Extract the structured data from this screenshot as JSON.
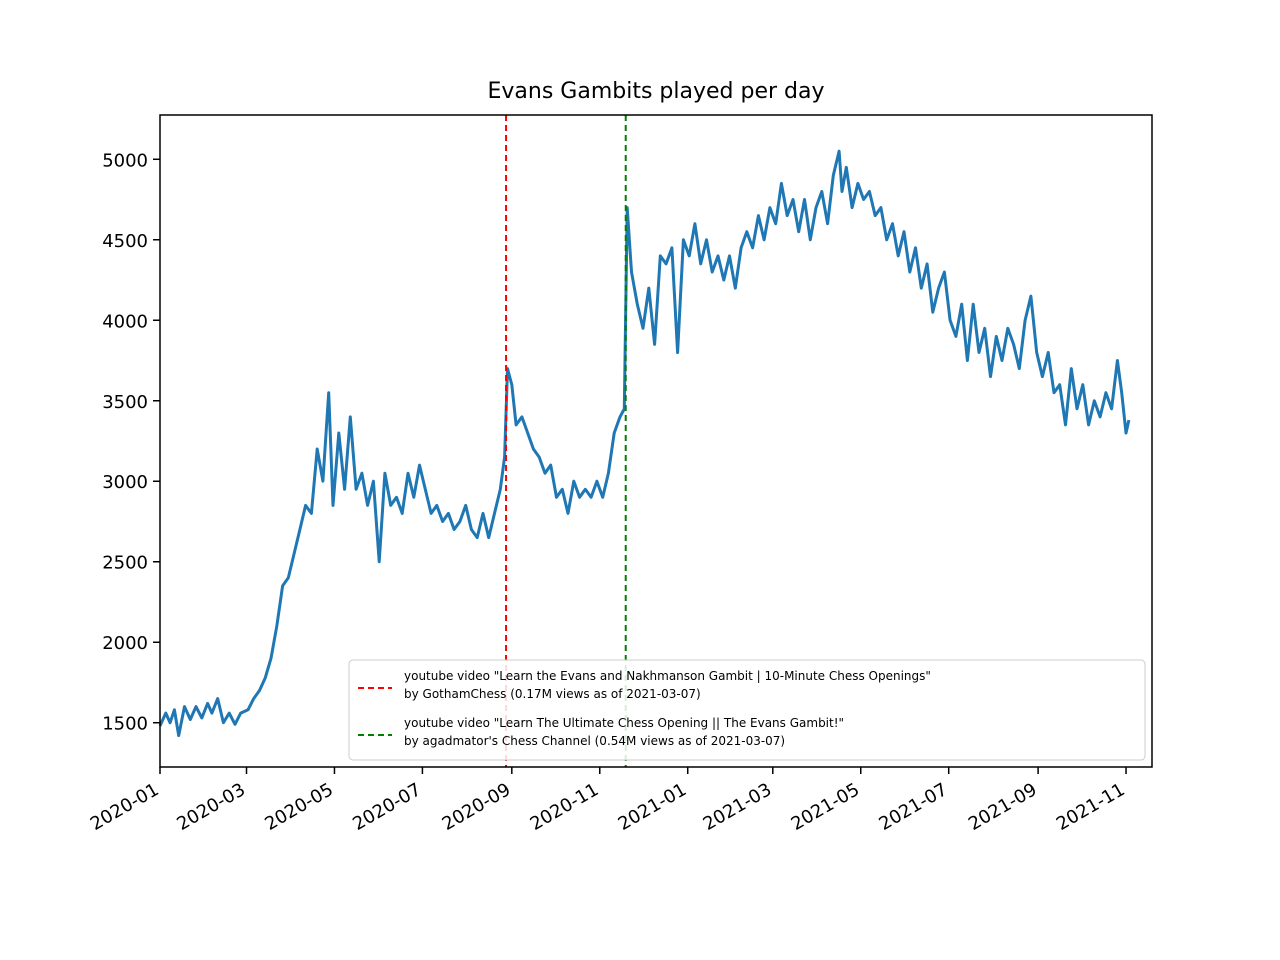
{
  "chart_data": {
    "type": "line",
    "title": "Evans Gambits played per day",
    "xlabel": "",
    "ylabel": "",
    "x_range": [
      "2020-01-01",
      "2021-11-19"
    ],
    "ylim": [
      1225,
      5275
    ],
    "x_ticks": [
      "2020-01",
      "2020-03",
      "2020-05",
      "2020-07",
      "2020-09",
      "2020-11",
      "2021-01",
      "2021-03",
      "2021-05",
      "2021-07",
      "2021-09",
      "2021-11"
    ],
    "y_ticks": [
      1500,
      2000,
      2500,
      3000,
      3500,
      4000,
      4500,
      5000
    ],
    "grid": false,
    "legend_position": "lower-right",
    "series": [
      {
        "color": "#1f77b4",
        "points": [
          [
            "2020-01-01",
            1480
          ],
          [
            "2020-01-05",
            1560
          ],
          [
            "2020-01-08",
            1500
          ],
          [
            "2020-01-11",
            1580
          ],
          [
            "2020-01-14",
            1420
          ],
          [
            "2020-01-18",
            1600
          ],
          [
            "2020-01-22",
            1520
          ],
          [
            "2020-01-26",
            1600
          ],
          [
            "2020-01-30",
            1530
          ],
          [
            "2020-02-03",
            1620
          ],
          [
            "2020-02-06",
            1560
          ],
          [
            "2020-02-10",
            1650
          ],
          [
            "2020-02-14",
            1500
          ],
          [
            "2020-02-18",
            1560
          ],
          [
            "2020-02-22",
            1490
          ],
          [
            "2020-02-26",
            1560
          ],
          [
            "2020-03-02",
            1580
          ],
          [
            "2020-03-06",
            1650
          ],
          [
            "2020-03-10",
            1700
          ],
          [
            "2020-03-14",
            1780
          ],
          [
            "2020-03-18",
            1900
          ],
          [
            "2020-03-22",
            2100
          ],
          [
            "2020-03-26",
            2350
          ],
          [
            "2020-03-30",
            2400
          ],
          [
            "2020-04-03",
            2550
          ],
          [
            "2020-04-07",
            2700
          ],
          [
            "2020-04-11",
            2850
          ],
          [
            "2020-04-15",
            2800
          ],
          [
            "2020-04-19",
            3200
          ],
          [
            "2020-04-23",
            3000
          ],
          [
            "2020-04-27",
            3550
          ],
          [
            "2020-04-30",
            2850
          ],
          [
            "2020-05-04",
            3300
          ],
          [
            "2020-05-08",
            2950
          ],
          [
            "2020-05-12",
            3400
          ],
          [
            "2020-05-16",
            2950
          ],
          [
            "2020-05-20",
            3050
          ],
          [
            "2020-05-24",
            2850
          ],
          [
            "2020-05-28",
            3000
          ],
          [
            "2020-06-01",
            2500
          ],
          [
            "2020-06-05",
            3050
          ],
          [
            "2020-06-09",
            2850
          ],
          [
            "2020-06-13",
            2900
          ],
          [
            "2020-06-17",
            2800
          ],
          [
            "2020-06-21",
            3050
          ],
          [
            "2020-06-25",
            2900
          ],
          [
            "2020-06-29",
            3100
          ],
          [
            "2020-07-03",
            2950
          ],
          [
            "2020-07-07",
            2800
          ],
          [
            "2020-07-11",
            2850
          ],
          [
            "2020-07-15",
            2750
          ],
          [
            "2020-07-19",
            2800
          ],
          [
            "2020-07-23",
            2700
          ],
          [
            "2020-07-27",
            2750
          ],
          [
            "2020-07-31",
            2850
          ],
          [
            "2020-08-04",
            2700
          ],
          [
            "2020-08-08",
            2650
          ],
          [
            "2020-08-12",
            2800
          ],
          [
            "2020-08-16",
            2650
          ],
          [
            "2020-08-20",
            2800
          ],
          [
            "2020-08-24",
            2950
          ],
          [
            "2020-08-27",
            3150
          ],
          [
            "2020-08-29",
            3700
          ],
          [
            "2020-09-01",
            3600
          ],
          [
            "2020-09-04",
            3350
          ],
          [
            "2020-09-08",
            3400
          ],
          [
            "2020-09-12",
            3300
          ],
          [
            "2020-09-16",
            3200
          ],
          [
            "2020-09-20",
            3150
          ],
          [
            "2020-09-24",
            3050
          ],
          [
            "2020-09-28",
            3100
          ],
          [
            "2020-10-02",
            2900
          ],
          [
            "2020-10-06",
            2950
          ],
          [
            "2020-10-10",
            2800
          ],
          [
            "2020-10-14",
            3000
          ],
          [
            "2020-10-18",
            2900
          ],
          [
            "2020-10-22",
            2950
          ],
          [
            "2020-10-26",
            2900
          ],
          [
            "2020-10-30",
            3000
          ],
          [
            "2020-11-03",
            2900
          ],
          [
            "2020-11-07",
            3050
          ],
          [
            "2020-11-11",
            3300
          ],
          [
            "2020-11-15",
            3400
          ],
          [
            "2020-11-18",
            3450
          ],
          [
            "2020-11-20",
            4700
          ],
          [
            "2020-11-23",
            4300
          ],
          [
            "2020-11-27",
            4100
          ],
          [
            "2020-12-01",
            3950
          ],
          [
            "2020-12-05",
            4200
          ],
          [
            "2020-12-09",
            3850
          ],
          [
            "2020-12-13",
            4400
          ],
          [
            "2020-12-17",
            4350
          ],
          [
            "2020-12-21",
            4450
          ],
          [
            "2020-12-25",
            3800
          ],
          [
            "2020-12-29",
            4500
          ],
          [
            "2021-01-02",
            4400
          ],
          [
            "2021-01-06",
            4600
          ],
          [
            "2021-01-10",
            4350
          ],
          [
            "2021-01-14",
            4500
          ],
          [
            "2021-01-18",
            4300
          ],
          [
            "2021-01-22",
            4400
          ],
          [
            "2021-01-26",
            4250
          ],
          [
            "2021-01-30",
            4400
          ],
          [
            "2021-02-03",
            4200
          ],
          [
            "2021-02-07",
            4450
          ],
          [
            "2021-02-11",
            4550
          ],
          [
            "2021-02-15",
            4450
          ],
          [
            "2021-02-19",
            4650
          ],
          [
            "2021-02-23",
            4500
          ],
          [
            "2021-02-27",
            4700
          ],
          [
            "2021-03-03",
            4600
          ],
          [
            "2021-03-07",
            4850
          ],
          [
            "2021-03-11",
            4650
          ],
          [
            "2021-03-15",
            4750
          ],
          [
            "2021-03-19",
            4550
          ],
          [
            "2021-03-23",
            4750
          ],
          [
            "2021-03-27",
            4500
          ],
          [
            "2021-03-31",
            4700
          ],
          [
            "2021-04-04",
            4800
          ],
          [
            "2021-04-08",
            4600
          ],
          [
            "2021-04-12",
            4900
          ],
          [
            "2021-04-16",
            5050
          ],
          [
            "2021-04-18",
            4800
          ],
          [
            "2021-04-21",
            4950
          ],
          [
            "2021-04-25",
            4700
          ],
          [
            "2021-04-29",
            4850
          ],
          [
            "2021-05-03",
            4750
          ],
          [
            "2021-05-07",
            4800
          ],
          [
            "2021-05-11",
            4650
          ],
          [
            "2021-05-15",
            4700
          ],
          [
            "2021-05-19",
            4500
          ],
          [
            "2021-05-23",
            4600
          ],
          [
            "2021-05-27",
            4400
          ],
          [
            "2021-05-31",
            4550
          ],
          [
            "2021-06-04",
            4300
          ],
          [
            "2021-06-08",
            4450
          ],
          [
            "2021-06-12",
            4200
          ],
          [
            "2021-06-16",
            4350
          ],
          [
            "2021-06-20",
            4050
          ],
          [
            "2021-06-24",
            4200
          ],
          [
            "2021-06-28",
            4300
          ],
          [
            "2021-07-02",
            4000
          ],
          [
            "2021-07-06",
            3900
          ],
          [
            "2021-07-10",
            4100
          ],
          [
            "2021-07-14",
            3750
          ],
          [
            "2021-07-18",
            4100
          ],
          [
            "2021-07-22",
            3800
          ],
          [
            "2021-07-26",
            3950
          ],
          [
            "2021-07-30",
            3650
          ],
          [
            "2021-08-03",
            3900
          ],
          [
            "2021-08-07",
            3750
          ],
          [
            "2021-08-11",
            3950
          ],
          [
            "2021-08-15",
            3850
          ],
          [
            "2021-08-19",
            3700
          ],
          [
            "2021-08-23",
            4000
          ],
          [
            "2021-08-27",
            4150
          ],
          [
            "2021-08-31",
            3800
          ],
          [
            "2021-09-04",
            3650
          ],
          [
            "2021-09-08",
            3800
          ],
          [
            "2021-09-12",
            3550
          ],
          [
            "2021-09-16",
            3600
          ],
          [
            "2021-09-20",
            3350
          ],
          [
            "2021-09-24",
            3700
          ],
          [
            "2021-09-28",
            3450
          ],
          [
            "2021-10-02",
            3600
          ],
          [
            "2021-10-06",
            3350
          ],
          [
            "2021-10-10",
            3500
          ],
          [
            "2021-10-14",
            3400
          ],
          [
            "2021-10-18",
            3550
          ],
          [
            "2021-10-22",
            3450
          ],
          [
            "2021-10-26",
            3750
          ],
          [
            "2021-10-29",
            3550
          ],
          [
            "2021-11-01",
            3300
          ],
          [
            "2021-11-03",
            3380
          ]
        ]
      }
    ],
    "annotations": [
      {
        "type": "vline",
        "x": "2020-08-28",
        "color": "#ff0000",
        "style": "dashed",
        "label_line1": "youtube video \"Learn the Evans and Nakhmanson Gambit | 10-Minute Chess Openings\"",
        "label_line2": "by GothamChess (0.17M views as of 2021-03-07)"
      },
      {
        "type": "vline",
        "x": "2020-11-19",
        "color": "#008000",
        "style": "dashed",
        "label_line1": "youtube video \"Learn The Ultimate Chess Opening || The Evans Gambit!\"",
        "label_line2": "by agadmator's Chess Channel (0.54M views as of 2021-03-07)"
      }
    ]
  }
}
